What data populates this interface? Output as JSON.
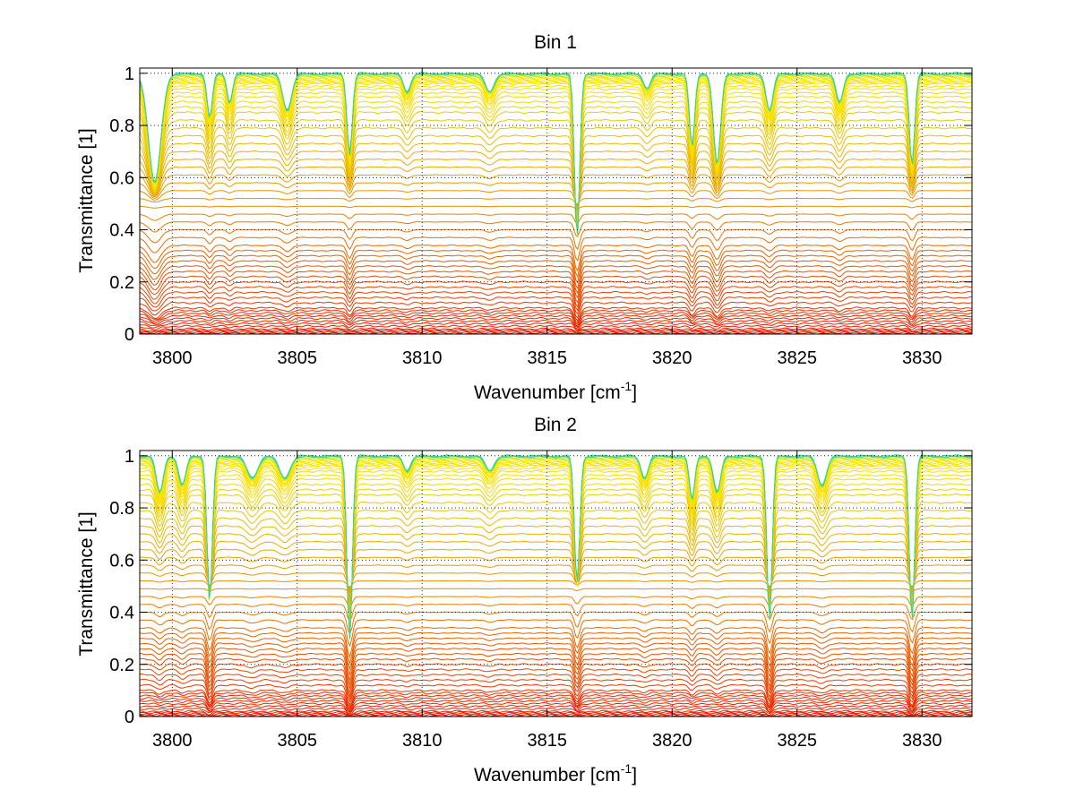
{
  "chart_data": [
    {
      "type": "line",
      "title": "Bin 1",
      "xlabel": "Wavenumber [cm",
      "xlabel_sup": "-1",
      "xlabel_end": "]",
      "ylabel": "Transmittance [1]",
      "xlim": [
        3798.7,
        3832.0
      ],
      "ylim": [
        0,
        1.02
      ],
      "xticks": [
        3800,
        3805,
        3810,
        3815,
        3820,
        3825,
        3830
      ],
      "xtick_labels": [
        "3800",
        "3805",
        "3810",
        "3815",
        "3820",
        "3825",
        "3830"
      ],
      "yticks": [
        0,
        0.2,
        0.4,
        0.6,
        0.8,
        1
      ],
      "ytick_labels": [
        "0",
        "0.2",
        "0.4",
        "0.6",
        "0.8",
        "1"
      ],
      "grid": true,
      "colormap": "autumn-to-green (red at low transmittance, yellow/green near 1)",
      "series_count": 60,
      "baseline_levels": [
        0.0,
        0.005,
        0.01,
        0.015,
        0.02,
        0.03,
        0.04,
        0.05,
        0.06,
        0.07,
        0.08,
        0.09,
        0.1,
        0.12,
        0.14,
        0.16,
        0.18,
        0.2,
        0.22,
        0.24,
        0.26,
        0.28,
        0.3,
        0.32,
        0.34,
        0.37,
        0.4,
        0.43,
        0.46,
        0.49,
        0.52,
        0.55,
        0.58,
        0.61,
        0.64,
        0.67,
        0.7,
        0.73,
        0.76,
        0.79,
        0.82,
        0.85,
        0.87,
        0.89,
        0.91,
        0.925,
        0.94,
        0.95,
        0.96,
        0.965,
        0.97,
        0.975,
        0.98,
        0.984,
        0.988,
        0.991,
        0.994,
        0.996,
        0.998,
        1.0
      ],
      "absorption_lines": [
        {
          "x": 3799.3,
          "depth": 0.3,
          "width": 0.35
        },
        {
          "x": 3801.5,
          "depth": 0.12,
          "width": 0.15
        },
        {
          "x": 3802.3,
          "depth": 0.08,
          "width": 0.15
        },
        {
          "x": 3804.6,
          "depth": 0.1,
          "width": 0.25
        },
        {
          "x": 3807.1,
          "depth": 0.22,
          "width": 0.15
        },
        {
          "x": 3809.4,
          "depth": 0.05,
          "width": 0.2
        },
        {
          "x": 3812.7,
          "depth": 0.05,
          "width": 0.25
        },
        {
          "x": 3816.2,
          "depth": 0.45,
          "width": 0.15
        },
        {
          "x": 3819.0,
          "depth": 0.04,
          "width": 0.2
        },
        {
          "x": 3820.8,
          "depth": 0.2,
          "width": 0.15
        },
        {
          "x": 3821.8,
          "depth": 0.25,
          "width": 0.2
        },
        {
          "x": 3823.9,
          "depth": 0.1,
          "width": 0.2
        },
        {
          "x": 3826.7,
          "depth": 0.08,
          "width": 0.2
        },
        {
          "x": 3829.6,
          "depth": 0.25,
          "width": 0.15
        }
      ]
    },
    {
      "type": "line",
      "title": "Bin 2",
      "xlabel": "Wavenumber [cm",
      "xlabel_sup": "-1",
      "xlabel_end": "]",
      "ylabel": "Transmittance [1]",
      "xlim": [
        3798.7,
        3832.0
      ],
      "ylim": [
        0,
        1.02
      ],
      "xticks": [
        3800,
        3805,
        3810,
        3815,
        3820,
        3825,
        3830
      ],
      "xtick_labels": [
        "3800",
        "3805",
        "3810",
        "3815",
        "3820",
        "3825",
        "3830"
      ],
      "yticks": [
        0,
        0.2,
        0.4,
        0.6,
        0.8,
        1
      ],
      "ytick_labels": [
        "0",
        "0.2",
        "0.4",
        "0.6",
        "0.8",
        "1"
      ],
      "grid": true,
      "colormap": "autumn-to-green (red at low transmittance, yellow/green near 1)",
      "series_count": 60,
      "baseline_levels": [
        0.0,
        0.005,
        0.01,
        0.015,
        0.02,
        0.03,
        0.04,
        0.05,
        0.06,
        0.07,
        0.08,
        0.09,
        0.1,
        0.12,
        0.14,
        0.16,
        0.18,
        0.2,
        0.22,
        0.24,
        0.26,
        0.28,
        0.3,
        0.32,
        0.34,
        0.37,
        0.4,
        0.43,
        0.46,
        0.49,
        0.52,
        0.55,
        0.58,
        0.61,
        0.64,
        0.67,
        0.7,
        0.73,
        0.76,
        0.79,
        0.82,
        0.85,
        0.87,
        0.89,
        0.91,
        0.925,
        0.94,
        0.95,
        0.96,
        0.965,
        0.97,
        0.975,
        0.98,
        0.984,
        0.988,
        0.991,
        0.994,
        0.996,
        0.998,
        1.0
      ],
      "absorption_lines": [
        {
          "x": 3799.5,
          "depth": 0.1,
          "width": 0.2
        },
        {
          "x": 3800.4,
          "depth": 0.08,
          "width": 0.2
        },
        {
          "x": 3801.5,
          "depth": 0.4,
          "width": 0.15
        },
        {
          "x": 3803.2,
          "depth": 0.06,
          "width": 0.3
        },
        {
          "x": 3804.5,
          "depth": 0.06,
          "width": 0.3
        },
        {
          "x": 3807.1,
          "depth": 0.5,
          "width": 0.15
        },
        {
          "x": 3809.4,
          "depth": 0.04,
          "width": 0.2
        },
        {
          "x": 3812.7,
          "depth": 0.04,
          "width": 0.25
        },
        {
          "x": 3816.2,
          "depth": 0.35,
          "width": 0.15
        },
        {
          "x": 3818.9,
          "depth": 0.06,
          "width": 0.2
        },
        {
          "x": 3820.8,
          "depth": 0.12,
          "width": 0.15
        },
        {
          "x": 3821.8,
          "depth": 0.1,
          "width": 0.2
        },
        {
          "x": 3823.9,
          "depth": 0.45,
          "width": 0.15
        },
        {
          "x": 3826.0,
          "depth": 0.08,
          "width": 0.25
        },
        {
          "x": 3829.6,
          "depth": 0.45,
          "width": 0.15
        }
      ]
    }
  ]
}
